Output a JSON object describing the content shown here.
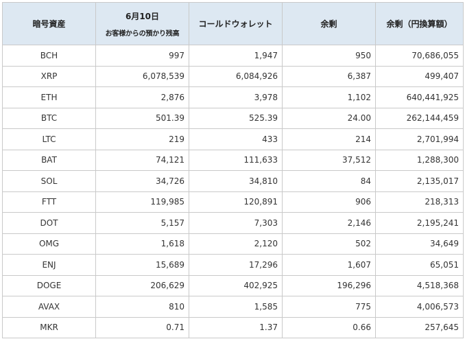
{
  "table": {
    "headers": {
      "asset": "暗号資産",
      "date": "6月10日",
      "date_sub": "お客様からの預かり残高",
      "cold": "コールドウォレット",
      "surplus": "余剰",
      "surplus_jpy": "余剰（円換算額）"
    },
    "rows": [
      {
        "asset": "BCH",
        "deposit": "997",
        "cold": "1,947",
        "surplus": "950",
        "jpy": "70,686,055"
      },
      {
        "asset": "XRP",
        "deposit": "6,078,539",
        "cold": "6,084,926",
        "surplus": "6,387",
        "jpy": "499,407"
      },
      {
        "asset": "ETH",
        "deposit": "2,876",
        "cold": "3,978",
        "surplus": "1,102",
        "jpy": "640,441,925"
      },
      {
        "asset": "BTC",
        "deposit": "501.39",
        "cold": "525.39",
        "surplus": "24.00",
        "jpy": "262,144,459"
      },
      {
        "asset": "LTC",
        "deposit": "219",
        "cold": "433",
        "surplus": "214",
        "jpy": "2,701,994"
      },
      {
        "asset": "BAT",
        "deposit": "74,121",
        "cold": "111,633",
        "surplus": "37,512",
        "jpy": "1,288,300"
      },
      {
        "asset": "SOL",
        "deposit": "34,726",
        "cold": "34,810",
        "surplus": "84",
        "jpy": "2,135,017"
      },
      {
        "asset": "FTT",
        "deposit": "119,985",
        "cold": "120,891",
        "surplus": "906",
        "jpy": "218,313"
      },
      {
        "asset": "DOT",
        "deposit": "5,157",
        "cold": "7,303",
        "surplus": "2,146",
        "jpy": "2,195,241"
      },
      {
        "asset": "OMG",
        "deposit": "1,618",
        "cold": "2,120",
        "surplus": "502",
        "jpy": "34,649"
      },
      {
        "asset": "ENJ",
        "deposit": "15,689",
        "cold": "17,296",
        "surplus": "1,607",
        "jpy": "65,051"
      },
      {
        "asset": "DOGE",
        "deposit": "206,629",
        "cold": "402,925",
        "surplus": "196,296",
        "jpy": "4,518,368"
      },
      {
        "asset": "AVAX",
        "deposit": "810",
        "cold": "1,585",
        "surplus": "775",
        "jpy": "4,006,573"
      },
      {
        "asset": "MKR",
        "deposit": "0.71",
        "cold": "1.37",
        "surplus": "0.66",
        "jpy": "257,645"
      }
    ]
  }
}
